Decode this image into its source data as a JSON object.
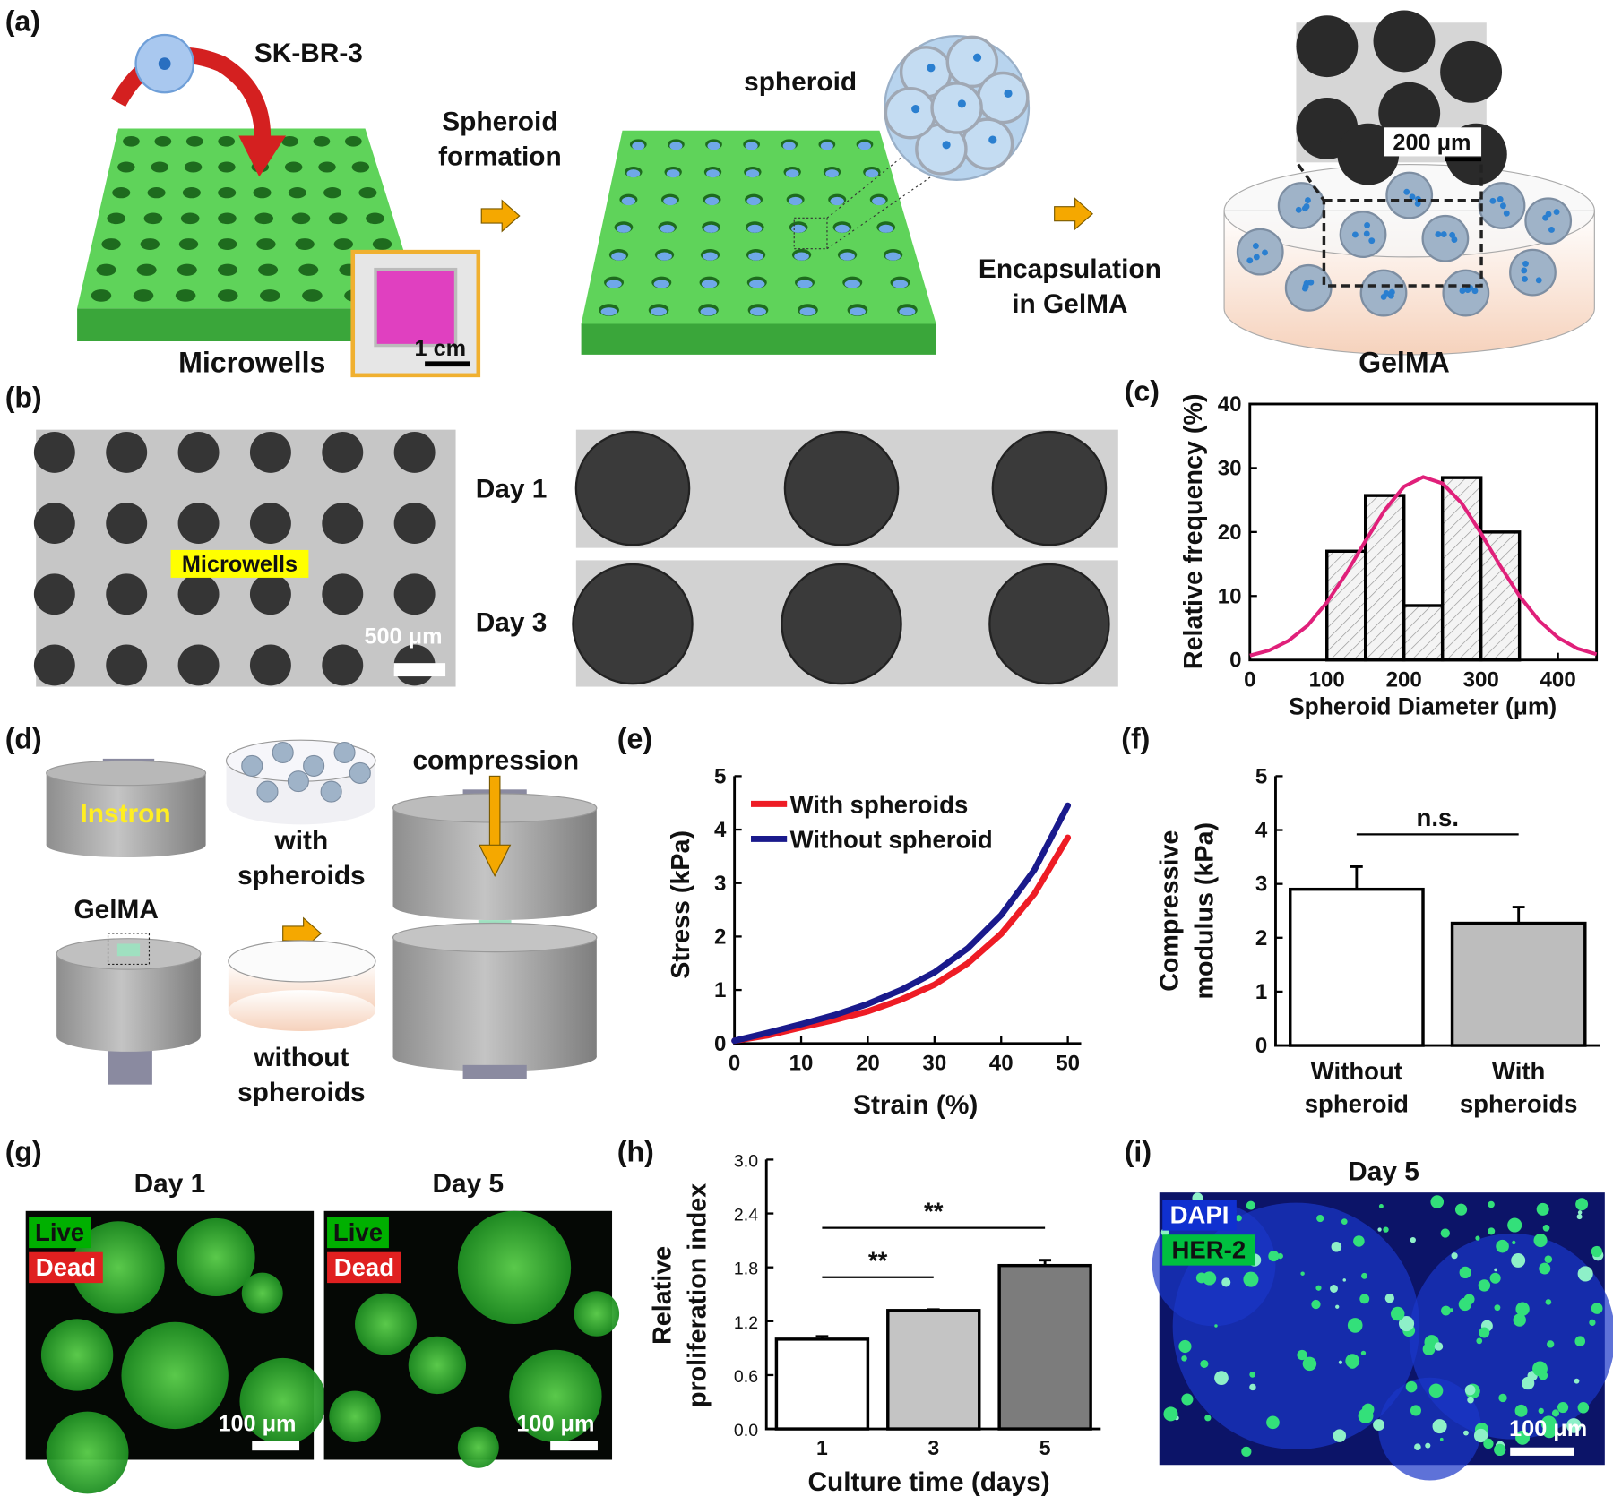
{
  "panel_labels": [
    "(a)",
    "(b)",
    "(c)",
    "(d)",
    "(e)",
    "(f)",
    "(g)",
    "(h)",
    "(i)"
  ],
  "panel_a": {
    "cell": "SK-BR-3",
    "microwells": "Microwells",
    "scale_inset": "1 cm",
    "step1": [
      "Spheroid",
      "formation"
    ],
    "spheroid": "spheroid",
    "step2": [
      "Encapsulation",
      "in GelMA"
    ],
    "scale_micro": "200 μm",
    "gelma": "GelMA"
  },
  "panel_b": {
    "tag": "Microwells",
    "scale": "500 μm",
    "day1": "Day 1",
    "day3": "Day 3"
  },
  "panel_d": {
    "instron": "Instron",
    "with": [
      "with",
      "spheroids"
    ],
    "gelma": "GelMA",
    "without": [
      "without",
      "spheroids"
    ],
    "compression": "compression"
  },
  "panel_g": {
    "day1": "Day 1",
    "day5": "Day 5",
    "live": "Live",
    "dead": "Dead",
    "scale": "100 μm"
  },
  "panel_i": {
    "day": "Day 5",
    "dapi": "DAPI",
    "her2": "HER-2",
    "scale": "100 μm"
  },
  "chart_data": [
    {
      "type": "histogram",
      "xlabel": "Spheroid Diameter (μm)",
      "ylabel": "Relative frequency (%)",
      "bins": [
        100,
        150,
        200,
        250,
        300,
        350
      ],
      "values": [
        17,
        25.7,
        8.5,
        28.5,
        20
      ],
      "color": "#f4f4f4",
      "fit": {
        "color": "#e0207a",
        "x": [
          0,
          25,
          50,
          75,
          100,
          125,
          150,
          175,
          200,
          225,
          250,
          275,
          300,
          325,
          350,
          375,
          400,
          425,
          450
        ],
        "values": [
          0.7,
          1.5,
          3.0,
          5.4,
          9.0,
          13.5,
          18.6,
          23.4,
          27.1,
          28.6,
          27.6,
          24.5,
          19.8,
          14.7,
          10.0,
          6.2,
          3.5,
          1.8,
          0.9
        ]
      },
      "xlim": [
        0,
        450
      ],
      "ylim": [
        0,
        40
      ],
      "xticks": [
        0,
        100,
        200,
        300,
        400
      ],
      "yticks": [
        0,
        10,
        20,
        30,
        40
      ]
    },
    {
      "type": "line",
      "xlabel": "Strain (%)",
      "ylabel": "Stress (kPa)",
      "x": [
        0,
        5,
        10,
        15,
        20,
        25,
        30,
        35,
        40,
        45,
        50
      ],
      "series": [
        {
          "name": "With spheroids",
          "color": "#ee1c25",
          "values": [
            0.05,
            0.15,
            0.3,
            0.44,
            0.6,
            0.82,
            1.1,
            1.5,
            2.05,
            2.8,
            3.85
          ]
        },
        {
          "name": "Without spheroid",
          "color": "#1a1a8c",
          "values": [
            0.05,
            0.2,
            0.36,
            0.53,
            0.74,
            1.0,
            1.33,
            1.78,
            2.4,
            3.25,
            4.45
          ]
        }
      ],
      "xlim": [
        0,
        52
      ],
      "ylim": [
        0,
        5
      ],
      "xticks": [
        0,
        10,
        20,
        30,
        40,
        50
      ],
      "yticks": [
        0,
        1,
        2,
        3,
        4,
        5
      ],
      "legend": "upper left"
    },
    {
      "type": "bar",
      "ylabel": [
        "Compressive",
        "modulus (kPa)"
      ],
      "categories": [
        [
          "Without",
          "spheroid"
        ],
        [
          "With",
          "spheroids"
        ]
      ],
      "values": [
        2.9,
        2.27
      ],
      "errors": [
        0.42,
        0.3
      ],
      "colors": [
        "#ffffff",
        "#bdbdbd"
      ],
      "ylim": [
        0,
        5
      ],
      "yticks": [
        0,
        1,
        2,
        3,
        4,
        5
      ],
      "annotations": [
        {
          "text": "n.s.",
          "pair": [
            0,
            1
          ]
        }
      ]
    },
    {
      "type": "bar",
      "xlabel": "Culture time (days)",
      "ylabel": [
        "Relative",
        "proliferation index"
      ],
      "categories": [
        "1",
        "3",
        "5"
      ],
      "values": [
        1.0,
        1.32,
        1.82
      ],
      "errors": [
        0.03,
        0.01,
        0.06
      ],
      "colors": [
        "#ffffff",
        "#c4c4c4",
        "#7c7c7c"
      ],
      "ylim": [
        0,
        3
      ],
      "yticks": [
        {
          "value": 0,
          "label": "0.0"
        },
        0.6,
        1.2,
        1.8,
        2.4,
        {
          "value": 3,
          "label": "3.0"
        }
      ],
      "annotations": [
        {
          "text": "**",
          "pair": [
            0,
            1
          ]
        },
        {
          "text": "**",
          "pair": [
            0,
            2
          ]
        }
      ]
    }
  ]
}
